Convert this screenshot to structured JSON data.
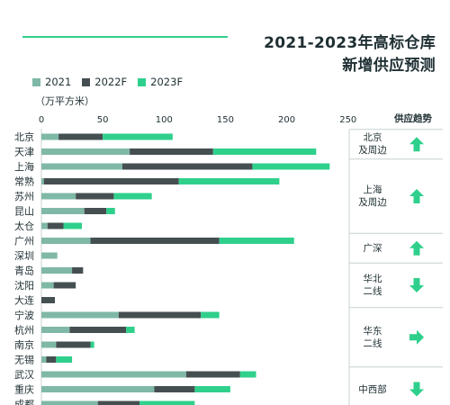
{
  "title": [
    "2021-2023年高标仓库",
    "新增供应预测"
  ],
  "unit_label": "（万平方米）",
  "trend_header": "供应趋势",
  "colors": {
    "2021": "#7fb8a6",
    "2022F": "#454f51",
    "2023F": "#2fd08c",
    "accent": "#2fd08c",
    "arrow": "#2fd08c"
  },
  "chart_data": {
    "type": "bar",
    "orientation": "horizontal",
    "stacked": true,
    "xlim": [
      0,
      250
    ],
    "xticks": [
      0,
      50,
      100,
      150,
      200,
      250
    ],
    "legend_position": "top-left",
    "categories": [
      "北京",
      "天津",
      "上海",
      "常熟",
      "苏州",
      "昆山",
      "太仓",
      "广州",
      "深圳",
      "青岛",
      "沈阳",
      "大连",
      "宁波",
      "杭州",
      "南京",
      "无锡",
      "武汉",
      "重庆",
      "成都"
    ],
    "series": [
      {
        "name": "2021",
        "values": [
          14,
          72,
          66,
          2,
          28,
          35,
          5,
          40,
          13,
          25,
          10,
          0,
          63,
          23,
          12,
          4,
          118,
          92,
          46
        ]
      },
      {
        "name": "2022F",
        "values": [
          36,
          68,
          106,
          110,
          31,
          18,
          13,
          105,
          0,
          9,
          18,
          11,
          67,
          46,
          28,
          8,
          44,
          33,
          34
        ]
      },
      {
        "name": "2023F",
        "values": [
          57,
          84,
          63,
          82,
          31,
          7,
          15,
          61,
          0,
          0,
          0,
          0,
          15,
          7,
          3,
          13,
          13,
          29,
          45
        ]
      }
    ],
    "regions": [
      {
        "label": [
          "北京",
          "及周边"
        ],
        "trend": "up",
        "rows": [
          0,
          1
        ]
      },
      {
        "label": [
          "上海",
          "及周边"
        ],
        "trend": "up",
        "rows": [
          2,
          6
        ]
      },
      {
        "label": [
          "广深"
        ],
        "trend": "up",
        "rows": [
          7,
          8
        ]
      },
      {
        "label": [
          "华北",
          "二线"
        ],
        "trend": "down",
        "rows": [
          9,
          11
        ]
      },
      {
        "label": [
          "华东",
          "二线"
        ],
        "trend": "right",
        "rows": [
          12,
          15
        ]
      },
      {
        "label": [
          "中西部"
        ],
        "trend": "down",
        "rows": [
          16,
          18
        ]
      }
    ]
  }
}
